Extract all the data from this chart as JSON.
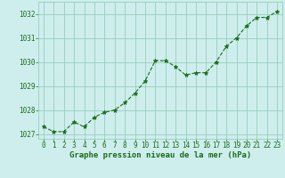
{
  "x": [
    0,
    1,
    2,
    3,
    4,
    5,
    6,
    7,
    8,
    9,
    10,
    11,
    12,
    13,
    14,
    15,
    16,
    17,
    18,
    19,
    20,
    21,
    22,
    23
  ],
  "y": [
    1027.3,
    1027.1,
    1027.1,
    1027.5,
    1027.3,
    1027.7,
    1027.9,
    1028.0,
    1028.3,
    1028.7,
    1029.2,
    1030.05,
    1030.05,
    1029.8,
    1029.45,
    1029.55,
    1029.55,
    1030.0,
    1030.65,
    1031.0,
    1031.5,
    1031.85,
    1031.85,
    1032.1
  ],
  "line_color": "#1a6b1a",
  "marker": "*",
  "marker_size": 3.5,
  "bg_color": "#ceeeed",
  "grid_color": "#99ccbb",
  "xlabel": "Graphe pression niveau de la mer (hPa)",
  "xlabel_color": "#1a6b1a",
  "xlabel_fontsize": 6.5,
  "tick_color": "#1a6b1a",
  "tick_fontsize": 5.5,
  "ylim": [
    1026.8,
    1032.5
  ],
  "yticks": [
    1027,
    1028,
    1029,
    1030,
    1031,
    1032
  ],
  "xlim": [
    -0.5,
    23.5
  ],
  "xticks": [
    0,
    1,
    2,
    3,
    4,
    5,
    6,
    7,
    8,
    9,
    10,
    11,
    12,
    13,
    14,
    15,
    16,
    17,
    18,
    19,
    20,
    21,
    22,
    23
  ]
}
